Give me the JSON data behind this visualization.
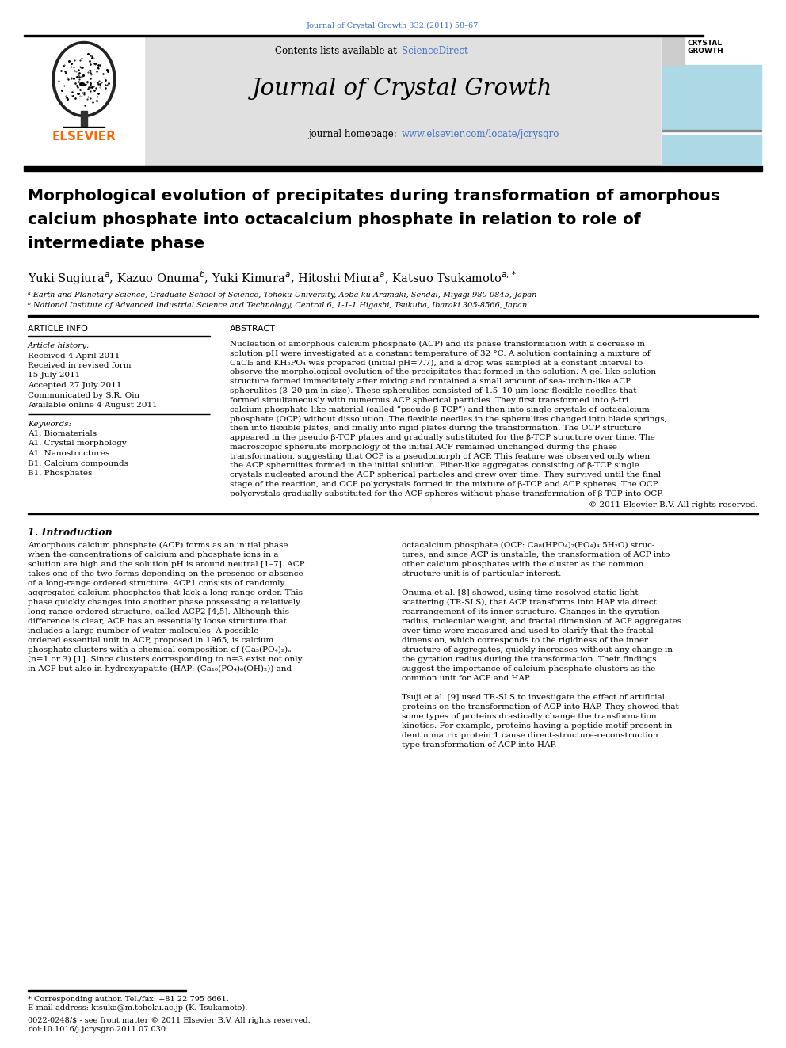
{
  "journal_header": "Journal of Crystal Growth 332 (2011) 58–67",
  "sciencedirect_color": "#4472C4",
  "journal_title": "Journal of Crystal Growth",
  "elsevier_color": "#FF6600",
  "paper_title_line1": "Morphological evolution of precipitates during transformation of amorphous",
  "paper_title_line2": "calcium phosphate into octacalcium phosphate in relation to role of",
  "paper_title_line3": "intermediate phase",
  "affiliation_a": "ᵃ Earth and Planetary Science, Graduate School of Science, Tohoku University, Aoba-ku Aramaki, Sendai, Miyagi 980-0845, Japan",
  "affiliation_b": "ᵇ National Institute of Advanced Industrial Science and Technology, Central 6, 1-1-1 Higashi, Tsukuba, Ibaraki 305-8566, Japan",
  "article_info_header": "ARTICLE INFO",
  "abstract_header": "ABSTRACT",
  "article_history_label": "Article history:",
  "received1": "Received 4 April 2011",
  "received2": "Received in revised form",
  "received2b": "15 July 2011",
  "accepted": "Accepted 27 July 2011",
  "communicated": "Communicated by S.R. Qiu",
  "available": "Available online 4 August 2011",
  "keywords_label": "Keywords:",
  "keywords": [
    "A1. Biomaterials",
    "A1. Crystal morphology",
    "A1. Nanostructures",
    "B1. Calcium compounds",
    "B1. Phosphates"
  ],
  "copyright": "© 2011 Elsevier B.V. All rights reserved.",
  "intro_header": "1. Introduction",
  "footnote_corresponding": "* Corresponding author. Tel./fax: +81 22 795 6661.",
  "footnote_email": "E-mail address: ktsuka@m.tohoku.ac.jp (K. Tsukamoto).",
  "footnote_issn": "0022-0248/$ - see front matter © 2011 Elsevier B.V. All rights reserved.",
  "footnote_doi": "doi:10.1016/j.jcrysgro.2011.07.030",
  "header_bg_color": "#E0E0E0",
  "crystal_growth_bg": "#ADD8E6",
  "link_color": "#4472C4",
  "abstract_lines": [
    "Nucleation of amorphous calcium phosphate (ACP) and its phase transformation with a decrease in",
    "solution pH were investigated at a constant temperature of 32 °C. A solution containing a mixture of",
    "CaCl₂ and KH₂PO₄ was prepared (initial pH=7.7), and a drop was sampled at a constant interval to",
    "observe the morphological evolution of the precipitates that formed in the solution. A gel-like solution",
    "structure formed immediately after mixing and contained a small amount of sea-urchin-like ACP",
    "spherulites (3–20 μm in size). These spherulites consisted of 1.5–10-μm-long flexible needles that",
    "formed simultaneously with numerous ACP spherical particles. They first transformed into β-tri",
    "calcium phosphate-like material (called “pseudo β-TCP”) and then into single crystals of octacalcium",
    "phosphate (OCP) without dissolution. The flexible needles in the spherulites changed into blade springs,",
    "then into flexible plates, and finally into rigid plates during the transformation. The OCP structure",
    "appeared in the pseudo β-TCP plates and gradually substituted for the β-TCP structure over time. The",
    "macroscopic spherulite morphology of the initial ACP remained unchanged during the phase",
    "transformation, suggesting that OCP is a pseudomorph of ACP. This feature was observed only when",
    "the ACP spherulites formed in the initial solution. Fiber-like aggregates consisting of β-TCP single",
    "crystals nucleated around the ACP spherical particles and grew over time. They survived until the final",
    "stage of the reaction, and OCP polycrystals formed in the mixture of β-TCP and ACP spheres. The OCP",
    "polycrystals gradually substituted for the ACP spheres without phase transformation of β-TCP into OCP."
  ],
  "intro_left_lines": [
    "Amorphous calcium phosphate (ACP) forms as an initial phase",
    "when the concentrations of calcium and phosphate ions in a",
    "solution are high and the solution pH is around neutral [1–7]. ACP",
    "takes one of the two forms depending on the presence or absence",
    "of a long-range ordered structure. ACP1 consists of randomly",
    "aggregated calcium phosphates that lack a long-range order. This",
    "phase quickly changes into another phase possessing a relatively",
    "long-range ordered structure, called ACP2 [4,5]. Although this",
    "difference is clear, ACP has an essentially loose structure that",
    "includes a large number of water molecules. A possible",
    "ordered essential unit in ACP, proposed in 1965, is calcium",
    "phosphate clusters with a chemical composition of (Ca₃(PO₄)₂)ₙ",
    "(n=1 or 3) [1]. Since clusters corresponding to n=3 exist not only",
    "in ACP but also in hydroxyapatite (HAP: (Ca₁₀(PO₄)₆(OH)₂)) and"
  ],
  "intro_right_lines": [
    "octacalcium phosphate (OCP: Ca₈(HPO₄)₂(PO₄)₄·5H₂O) struc-",
    "tures, and since ACP is unstable, the transformation of ACP into",
    "other calcium phosphates with the cluster as the common",
    "structure unit is of particular interest.",
    "",
    "Onuma et al. [8] showed, using time-resolved static light",
    "scattering (TR-SLS), that ACP transforms into HAP via direct",
    "rearrangement of its inner structure. Changes in the gyration",
    "radius, molecular weight, and fractal dimension of ACP aggregates",
    "over time were measured and used to clarify that the fractal",
    "dimension, which corresponds to the rigidness of the inner",
    "structure of aggregates, quickly increases without any change in",
    "the gyration radius during the transformation. Their findings",
    "suggest the importance of calcium phosphate clusters as the",
    "common unit for ACP and HAP.",
    "",
    "Tsuji et al. [9] used TR-SLS to investigate the effect of artificial",
    "proteins on the transformation of ACP into HAP. They showed that",
    "some types of proteins drastically change the transformation",
    "kinetics. For example, proteins having a peptide motif present in",
    "dentin matrix protein 1 cause direct-structure-reconstruction",
    "type transformation of ACP into HAP."
  ]
}
